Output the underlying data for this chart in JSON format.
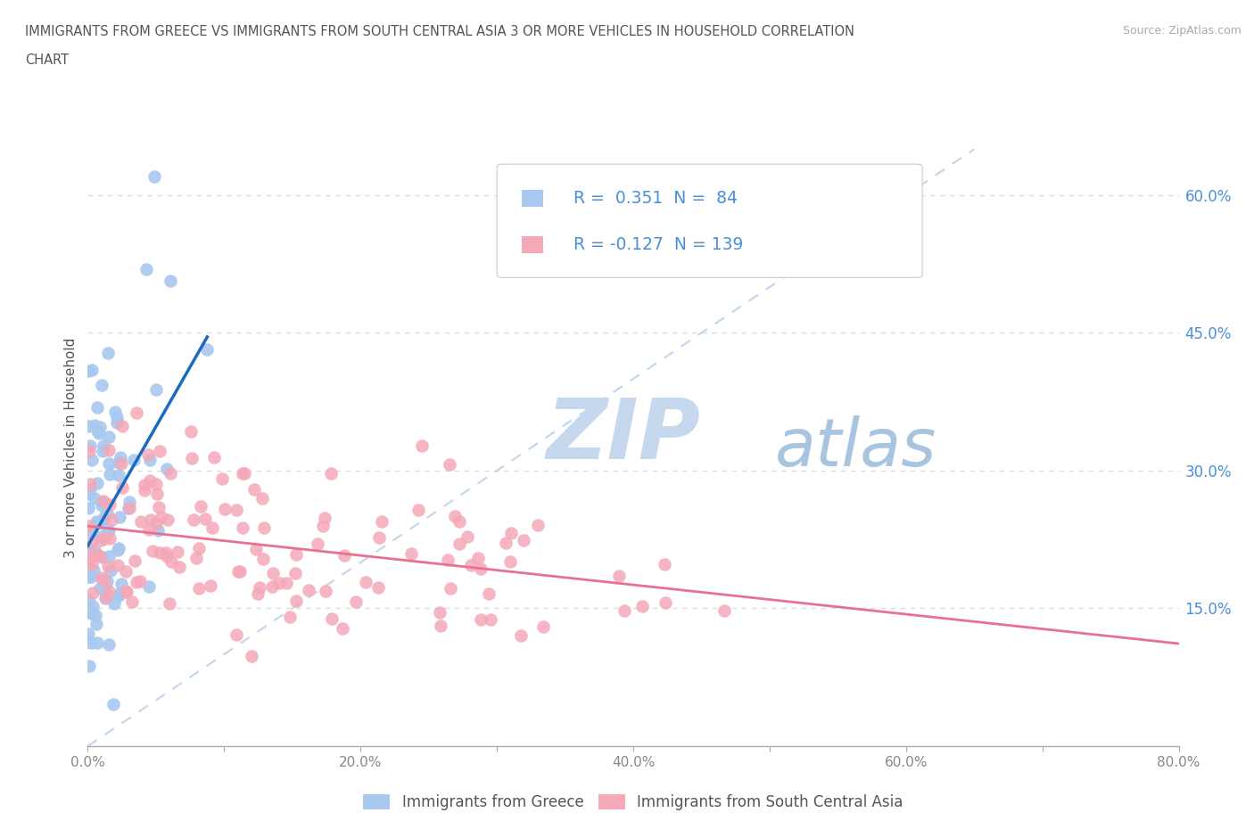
{
  "title_line1": "IMMIGRANTS FROM GREECE VS IMMIGRANTS FROM SOUTH CENTRAL ASIA 3 OR MORE VEHICLES IN HOUSEHOLD CORRELATION",
  "title_line2": "CHART",
  "source_text": "Source: ZipAtlas.com",
  "ylabel": "3 or more Vehicles in Household",
  "xlim": [
    0.0,
    0.8
  ],
  "ylim": [
    0.0,
    0.65
  ],
  "xticks": [
    0.0,
    0.1,
    0.2,
    0.3,
    0.4,
    0.5,
    0.6,
    0.7,
    0.8
  ],
  "xticklabels": [
    "0.0%",
    "",
    "20.0%",
    "",
    "40.0%",
    "",
    "60.0%",
    "",
    "80.0%"
  ],
  "yticks_right": [
    0.15,
    0.3,
    0.45,
    0.6
  ],
  "ytick_right_labels": [
    "15.0%",
    "30.0%",
    "45.0%",
    "60.0%"
  ],
  "legend_labels": [
    "Immigrants from Greece",
    "Immigrants from South Central Asia"
  ],
  "R_greece": 0.351,
  "N_greece": 84,
  "R_sca": -0.127,
  "N_sca": 139,
  "color_greece": "#a8c8f0",
  "color_sca": "#f4a8b8",
  "color_trendline_greece": "#1a6bbf",
  "color_trendline_sca": "#e87090",
  "color_diag": "#b0cce8",
  "watermark_zip": "ZIP",
  "watermark_atlas": "atlas",
  "watermark_color_zip": "#c5d8ed",
  "watermark_color_atlas": "#a8c4e0",
  "background_color": "#ffffff",
  "title_color": "#555555",
  "axis_color": "#555555",
  "tick_color_right": "#4a90d9",
  "legend_R_color": "#4a90d9",
  "grid_color": "#dddddd",
  "tick_color_x": "#888888"
}
